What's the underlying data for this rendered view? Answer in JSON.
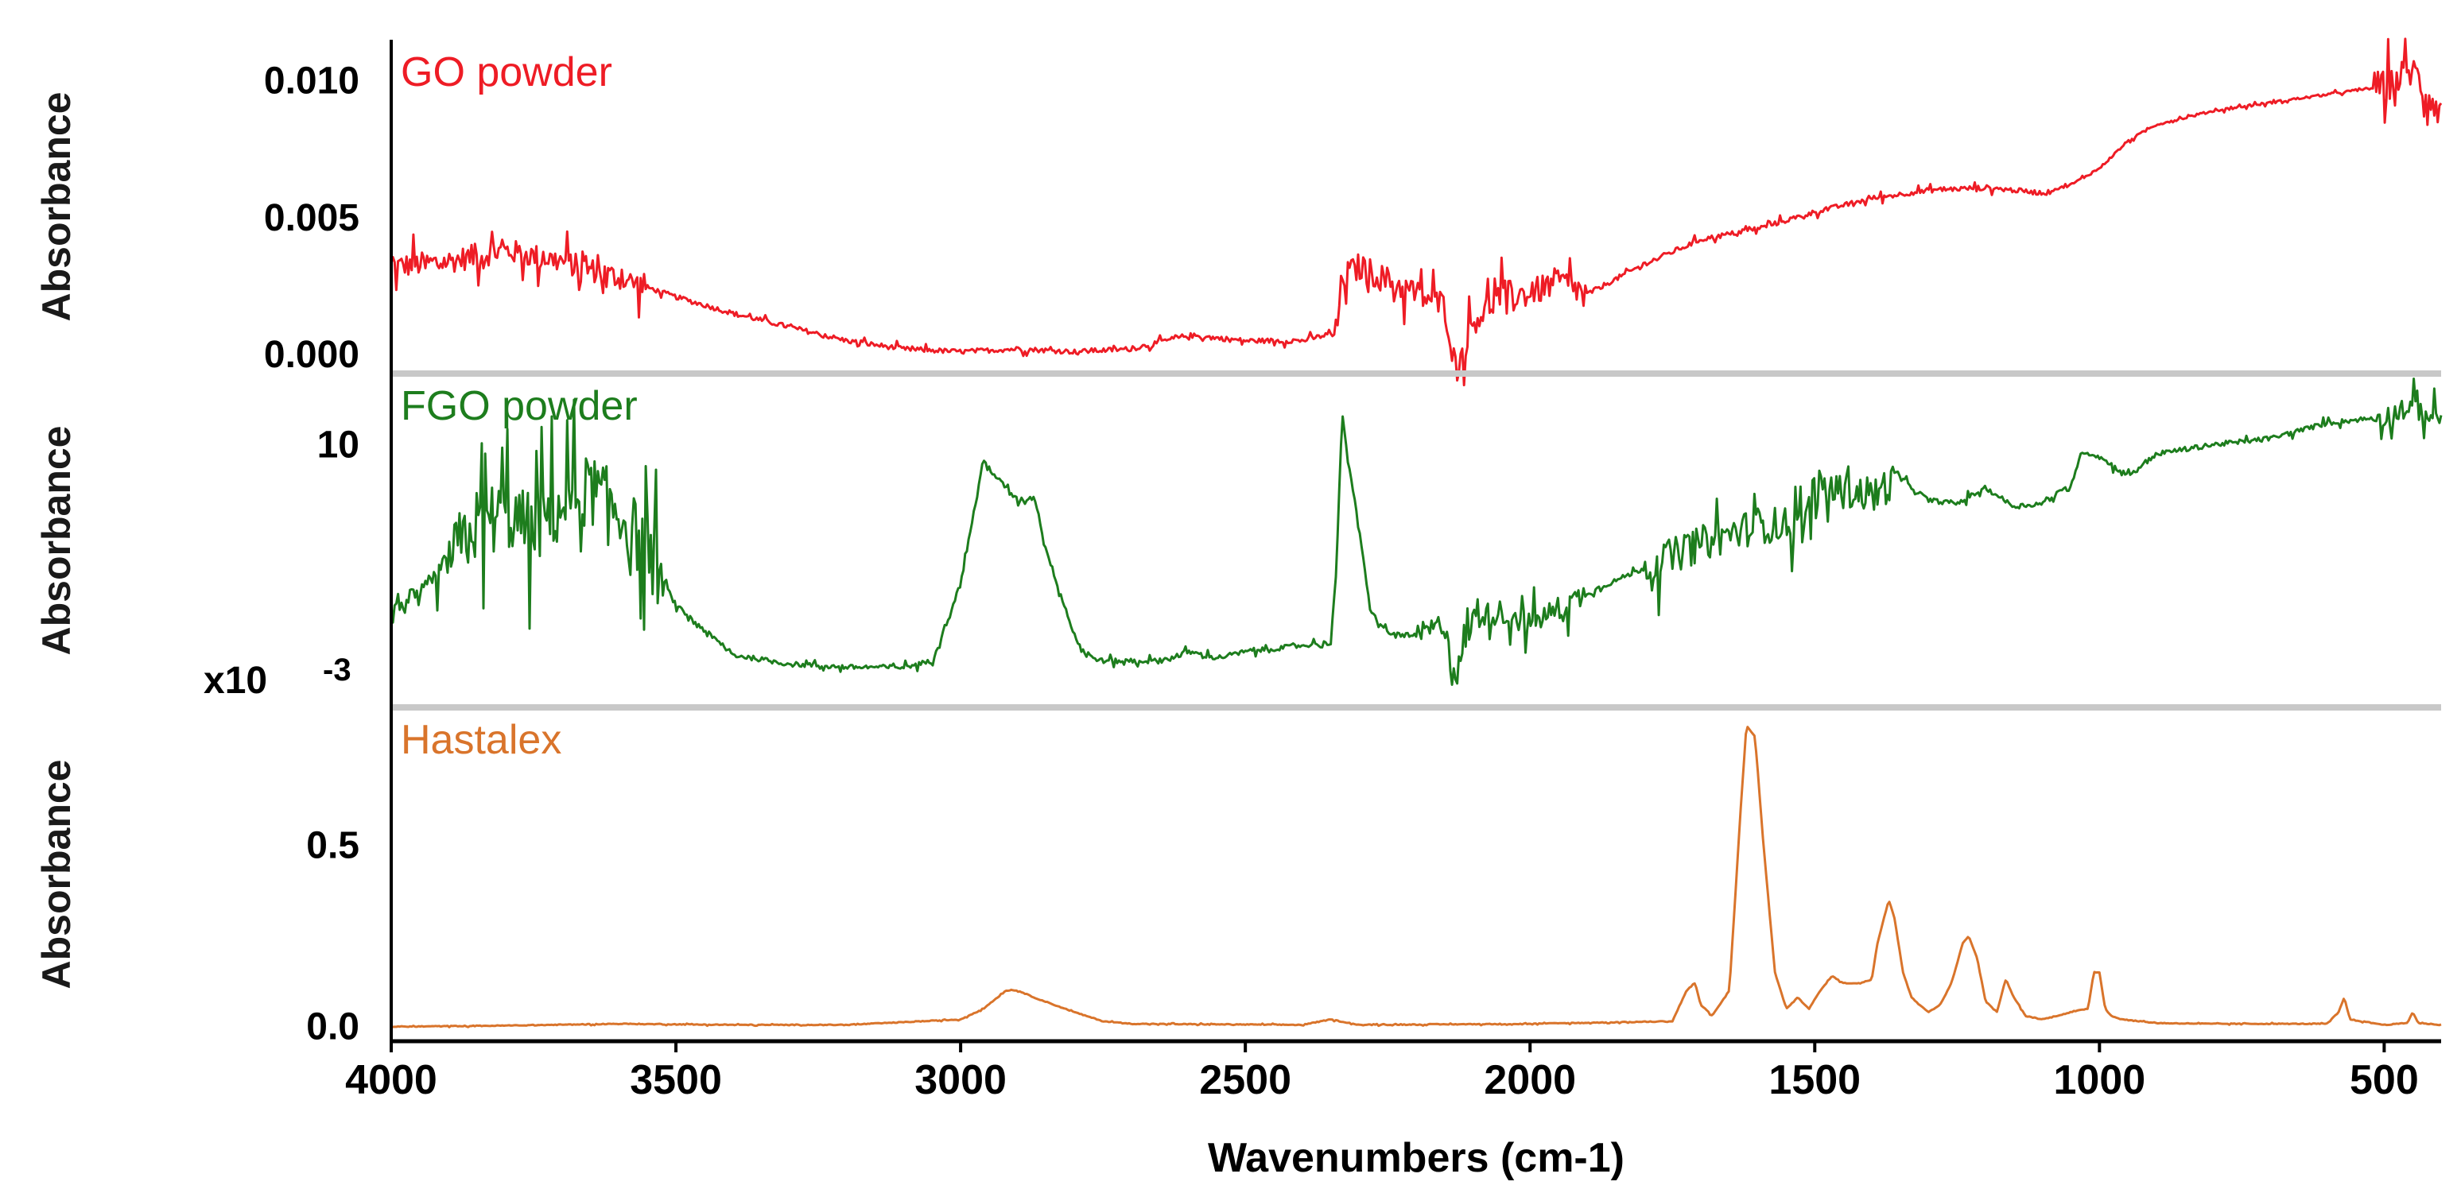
{
  "chart_data": {
    "type": "line",
    "xlabel": "Wavenumbers (cm-1)",
    "xlim": [
      4000,
      400
    ],
    "x_reversed": true,
    "x_ticks": [
      4000,
      3500,
      3000,
      2500,
      2000,
      1500,
      1000,
      500
    ],
    "x_tick_labels": [
      "4000",
      "3500",
      "3000",
      "2500",
      "2000",
      "1500",
      "1000",
      "500"
    ],
    "panels": [
      {
        "ylabel": "Absorbance",
        "series_name": "GO powder",
        "color": "#ee1c25",
        "ylim": [
          -0.0007,
          0.0115
        ],
        "y_ticks": [
          0.0,
          0.005,
          0.01
        ],
        "y_tick_labels": [
          "0.000",
          "0.005",
          "0.010"
        ],
        "multiplier": "",
        "multiplier_exp": "",
        "x": [
          4000,
          3900,
          3850,
          3800,
          3700,
          3600,
          3500,
          3400,
          3300,
          3200,
          3100,
          3000,
          2900,
          2800,
          2700,
          2640,
          2600,
          2500,
          2400,
          2340,
          2330,
          2300,
          2250,
          2200,
          2150,
          2130,
          2100,
          2050,
          2000,
          1950,
          1900,
          1800,
          1700,
          1600,
          1500,
          1400,
          1300,
          1200,
          1100,
          1050,
          1000,
          950,
          900,
          800,
          700,
          600,
          500,
          450,
          400
        ],
        "y": [
          0.0032,
          0.0034,
          0.0036,
          0.0038,
          0.0034,
          0.0028,
          0.0021,
          0.0015,
          0.001,
          0.0005,
          0.0002,
          0.0001,
          0.0002,
          0.0001,
          0.0002,
          0.0005,
          0.0007,
          0.0005,
          0.0005,
          0.0008,
          0.0028,
          0.0032,
          0.0027,
          0.0022,
          0.0018,
          -0.0006,
          0.0012,
          0.0022,
          0.0022,
          0.0027,
          0.0022,
          0.0033,
          0.0042,
          0.0046,
          0.0052,
          0.0057,
          0.006,
          0.0061,
          0.0059,
          0.0062,
          0.0068,
          0.0078,
          0.0084,
          0.0089,
          0.0092,
          0.0095,
          0.0098,
          0.0104,
          0.0088
        ]
      },
      {
        "ylabel": "Absorbance",
        "series_name": "FGO powder",
        "color": "#1d7d1d",
        "ylim": [
          1.5,
          12.3
        ],
        "y_ticks": [
          10
        ],
        "y_tick_labels": [
          "10"
        ],
        "multiplier": "x10",
        "multiplier_exp": "-3",
        "x": [
          4000,
          3950,
          3900,
          3850,
          3800,
          3750,
          3700,
          3650,
          3600,
          3550,
          3500,
          3400,
          3300,
          3200,
          3100,
          3050,
          3000,
          2960,
          2940,
          2900,
          2870,
          2850,
          2800,
          2780,
          2750,
          2700,
          2650,
          2600,
          2550,
          2500,
          2450,
          2400,
          2350,
          2340,
          2330,
          2320,
          2300,
          2280,
          2250,
          2200,
          2150,
          2130,
          2100,
          2050,
          2000,
          1900,
          1800,
          1700,
          1600,
          1520,
          1500,
          1450,
          1400,
          1350,
          1300,
          1250,
          1200,
          1150,
          1100,
          1050,
          1030,
          1000,
          950,
          900,
          800,
          700,
          600,
          500,
          450,
          400
        ],
        "y": [
          4.8,
          5.0,
          6.2,
          7.4,
          7.8,
          7.2,
          8.0,
          8.6,
          7.8,
          6.6,
          4.8,
          3.2,
          2.9,
          2.8,
          2.8,
          3.0,
          5.5,
          9.5,
          9.0,
          8.2,
          8.3,
          6.6,
          3.8,
          3.2,
          3.0,
          3.0,
          3.0,
          3.3,
          3.1,
          3.3,
          3.4,
          3.5,
          3.6,
          6.0,
          11.0,
          9.6,
          7.2,
          4.6,
          3.9,
          3.8,
          4.2,
          2.5,
          4.4,
          4.6,
          4.2,
          5.2,
          6.0,
          6.8,
          7.4,
          7.4,
          8.6,
          8.5,
          8.4,
          8.9,
          8.2,
          8.1,
          8.6,
          8.0,
          8.1,
          8.7,
          9.8,
          9.6,
          9.0,
          9.7,
          10.0,
          10.2,
          10.7,
          10.9,
          11.2,
          10.8
        ]
      },
      {
        "ylabel": "Absorbance",
        "series_name": "Hastalex",
        "color": "#d9742b",
        "ylim": [
          -0.04,
          0.88
        ],
        "y_ticks": [
          0.0,
          0.5
        ],
        "y_tick_labels": [
          "0.0",
          "0.5"
        ],
        "multiplier": "",
        "multiplier_exp": "",
        "x": [
          4000,
          3800,
          3600,
          3400,
          3200,
          3000,
          2960,
          2920,
          2900,
          2870,
          2800,
          2750,
          2700,
          2400,
          2350,
          2300,
          2000,
          1750,
          1725,
          1710,
          1700,
          1680,
          1650,
          1630,
          1620,
          1605,
          1590,
          1570,
          1550,
          1530,
          1510,
          1490,
          1470,
          1450,
          1420,
          1400,
          1390,
          1370,
          1360,
          1345,
          1330,
          1300,
          1280,
          1260,
          1240,
          1230,
          1215,
          1200,
          1180,
          1165,
          1150,
          1130,
          1100,
          1050,
          1020,
          1010,
          1000,
          990,
          980,
          960,
          900,
          800,
          700,
          600,
          580,
          570,
          560,
          500,
          460,
          450,
          440,
          400
        ],
        "y": [
          0.0,
          0.003,
          0.008,
          0.005,
          0.005,
          0.02,
          0.05,
          0.1,
          0.1,
          0.08,
          0.04,
          0.015,
          0.008,
          0.005,
          0.02,
          0.005,
          0.008,
          0.015,
          0.1,
          0.12,
          0.06,
          0.03,
          0.1,
          0.6,
          0.83,
          0.8,
          0.5,
          0.15,
          0.05,
          0.08,
          0.05,
          0.1,
          0.14,
          0.12,
          0.12,
          0.13,
          0.23,
          0.35,
          0.3,
          0.15,
          0.08,
          0.04,
          0.06,
          0.12,
          0.23,
          0.25,
          0.19,
          0.07,
          0.04,
          0.13,
          0.08,
          0.03,
          0.02,
          0.04,
          0.05,
          0.15,
          0.15,
          0.05,
          0.03,
          0.02,
          0.01,
          0.008,
          0.008,
          0.008,
          0.04,
          0.08,
          0.02,
          0.005,
          0.01,
          0.04,
          0.01,
          0.005
        ]
      }
    ]
  }
}
